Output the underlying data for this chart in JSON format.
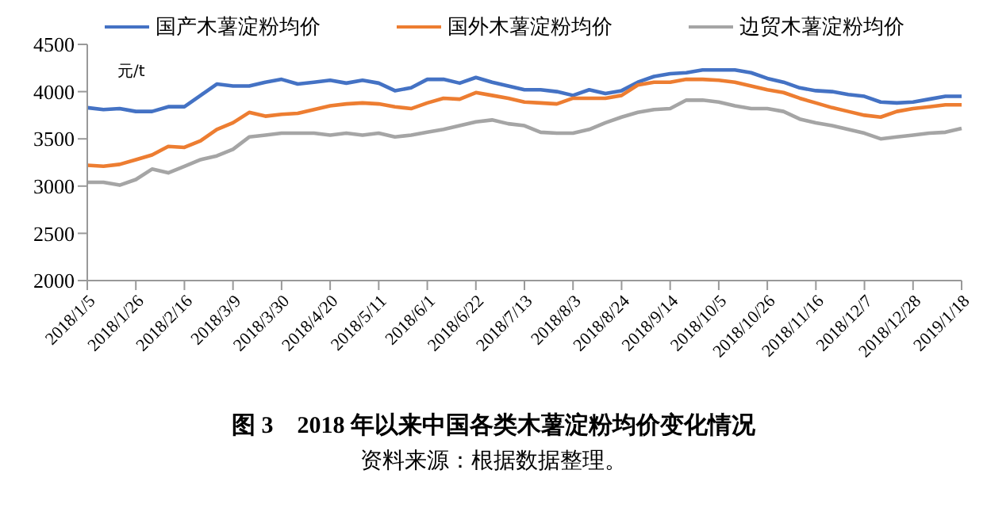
{
  "chart_data": {
    "type": "line",
    "title": "图 3　2018 年以来中国各类木薯淀粉均价变化情况",
    "ylabel": "元/t",
    "annotations": [
      "资料来源：根据数据整理。"
    ],
    "categories": [
      "2018/1/5",
      null,
      null,
      "2018/1/26",
      null,
      null,
      "2018/2/16",
      null,
      null,
      "2018/3/9",
      null,
      null,
      "2018/3/30",
      null,
      null,
      "2018/4/20",
      null,
      null,
      "2018/5/11",
      null,
      null,
      "2018/6/1",
      null,
      null,
      "2018/6/22",
      null,
      null,
      "2018/7/13",
      null,
      null,
      "2018/8/3",
      null,
      null,
      "2018/8/24",
      null,
      null,
      "2018/9/14",
      null,
      null,
      "2018/10/5",
      null,
      null,
      "2018/10/26",
      null,
      null,
      "2018/11/16",
      null,
      null,
      "2018/12/7",
      null,
      null,
      "2018/12/28",
      null,
      null,
      "2019/1/18"
    ],
    "series": [
      {
        "name": "国产木薯淀粉均价",
        "color": "#4472c4",
        "values": [
          3830,
          3810,
          3820,
          3790,
          3790,
          3840,
          3840,
          3960,
          4080,
          4060,
          4060,
          4100,
          4130,
          4080,
          4100,
          4120,
          4090,
          4120,
          4090,
          4010,
          4040,
          4130,
          4130,
          4090,
          4150,
          4100,
          4060,
          4020,
          4020,
          4000,
          3960,
          4020,
          3980,
          4010,
          4100,
          4160,
          4190,
          4200,
          4230,
          4230,
          4230,
          4200,
          4140,
          4100,
          4040,
          4010,
          4000,
          3970,
          3950,
          3890,
          3880,
          3890,
          3920,
          3950,
          3950
        ]
      },
      {
        "name": "国外木薯淀粉均价",
        "color": "#ed7d31",
        "values": [
          3220,
          3210,
          3230,
          3280,
          3330,
          3420,
          3410,
          3480,
          3600,
          3670,
          3780,
          3740,
          3760,
          3770,
          3810,
          3850,
          3870,
          3880,
          3870,
          3840,
          3820,
          3880,
          3930,
          3920,
          3990,
          3960,
          3930,
          3890,
          3880,
          3870,
          3930,
          3930,
          3930,
          3960,
          4070,
          4100,
          4100,
          4130,
          4130,
          4120,
          4100,
          4060,
          4020,
          3990,
          3930,
          3880,
          3830,
          3790,
          3750,
          3730,
          3790,
          3820,
          3840,
          3860,
          3860
        ]
      },
      {
        "name": "边贸木薯淀粉均价",
        "color": "#a5a5a5",
        "values": [
          3040,
          3040,
          3010,
          3070,
          3180,
          3140,
          3210,
          3280,
          3320,
          3390,
          3520,
          3540,
          3560,
          3560,
          3560,
          3540,
          3560,
          3540,
          3560,
          3520,
          3540,
          3570,
          3600,
          3640,
          3680,
          3700,
          3660,
          3640,
          3570,
          3560,
          3560,
          3600,
          3670,
          3730,
          3780,
          3810,
          3820,
          3910,
          3910,
          3890,
          3850,
          3820,
          3820,
          3790,
          3710,
          3670,
          3640,
          3600,
          3560,
          3500,
          3520,
          3540,
          3560,
          3570,
          3610
        ]
      }
    ],
    "ylim": [
      2000,
      4500
    ],
    "yticks": [
      2000,
      2500,
      3000,
      3500,
      4000,
      4500
    ],
    "grid": false,
    "legend": "top",
    "marker": "none",
    "line_style": "solid"
  }
}
